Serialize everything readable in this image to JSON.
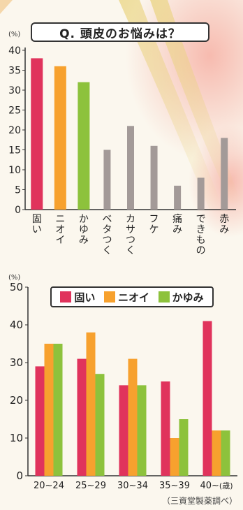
{
  "chart_data": [
    {
      "type": "bar",
      "title": "Q. 頭皮のお悩みは？",
      "unit": "(%)",
      "categories": [
        "固い",
        "ニオイ",
        "かゆみ",
        "ベタつく",
        "カサつく",
        "フケ",
        "痛み",
        "できもの",
        "赤み"
      ],
      "values": [
        38,
        36,
        32,
        15,
        21,
        16,
        6,
        8,
        18
      ],
      "colors": [
        "#e0335c",
        "#f7a12e",
        "#8dc23c",
        "#a39a98",
        "#a39a98",
        "#a39a98",
        "#a39a98",
        "#a39a98",
        "#a39a98"
      ],
      "yticks": [
        0,
        5,
        10,
        15,
        20,
        25,
        30,
        35,
        40
      ],
      "ylim": [
        0,
        40
      ],
      "grid": false
    },
    {
      "type": "bar",
      "unit": "(%)",
      "categories": [
        "20~24",
        "25~29",
        "30~34",
        "35~39",
        "40~"
      ],
      "category_suffix": "(歳)",
      "series": [
        {
          "name": "固い",
          "values": [
            29,
            31,
            24,
            25,
            41
          ],
          "color": "#e0335c"
        },
        {
          "name": "ニオイ",
          "values": [
            35,
            38,
            31,
            10,
            12
          ],
          "color": "#f7a12e"
        },
        {
          "name": "かゆみ",
          "values": [
            35,
            27,
            24,
            15,
            12
          ],
          "color": "#8dc23c"
        }
      ],
      "yticks": [
        0,
        10,
        20,
        30,
        40,
        50
      ],
      "ylim": [
        0,
        50
      ],
      "legend": "top-center",
      "grid": false
    }
  ],
  "source": "（三資堂製薬調べ）"
}
